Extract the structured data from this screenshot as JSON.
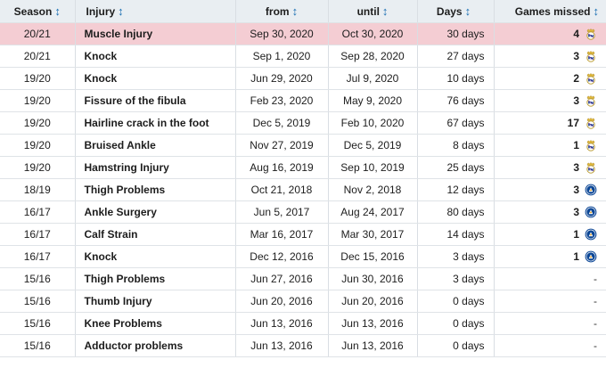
{
  "headers": {
    "season": "Season",
    "injury": "Injury",
    "from": "from",
    "until": "until",
    "days": "Days",
    "games": "Games missed",
    "sort_glyph": "↕"
  },
  "colors": {
    "header_bg": "#e9eef2",
    "header_text": "#1a6fb3",
    "highlight_row": "#f4cdd3"
  },
  "rows": [
    {
      "season": "20/21",
      "injury": "Muscle Injury",
      "from": "Sep 30, 2020",
      "until": "Oct 30, 2020",
      "days": "30 days",
      "games": "4",
      "club_icon": "real-madrid-crest",
      "highlight": true
    },
    {
      "season": "20/21",
      "injury": "Knock",
      "from": "Sep 1, 2020",
      "until": "Sep 28, 2020",
      "days": "27 days",
      "games": "3",
      "club_icon": "real-madrid-crest"
    },
    {
      "season": "19/20",
      "injury": "Knock",
      "from": "Jun 29, 2020",
      "until": "Jul 9, 2020",
      "days": "10 days",
      "games": "2",
      "club_icon": "real-madrid-crest"
    },
    {
      "season": "19/20",
      "injury": "Fissure of the fibula",
      "from": "Feb 23, 2020",
      "until": "May 9, 2020",
      "days": "76 days",
      "games": "3",
      "club_icon": "real-madrid-crest"
    },
    {
      "season": "19/20",
      "injury": "Hairline crack in the foot",
      "from": "Dec 5, 2019",
      "until": "Feb 10, 2020",
      "days": "67 days",
      "games": "17",
      "club_icon": "real-madrid-crest"
    },
    {
      "season": "19/20",
      "injury": "Bruised Ankle",
      "from": "Nov 27, 2019",
      "until": "Dec 5, 2019",
      "days": "8 days",
      "games": "1",
      "club_icon": "real-madrid-crest"
    },
    {
      "season": "19/20",
      "injury": "Hamstring Injury",
      "from": "Aug 16, 2019",
      "until": "Sep 10, 2019",
      "days": "25 days",
      "games": "3",
      "club_icon": "real-madrid-crest"
    },
    {
      "season": "18/19",
      "injury": "Thigh Problems",
      "from": "Oct 21, 2018",
      "until": "Nov 2, 2018",
      "days": "12 days",
      "games": "3",
      "club_icon": "chelsea-crest"
    },
    {
      "season": "16/17",
      "injury": "Ankle Surgery",
      "from": "Jun 5, 2017",
      "until": "Aug 24, 2017",
      "days": "80 days",
      "games": "3",
      "club_icon": "chelsea-crest"
    },
    {
      "season": "16/17",
      "injury": "Calf Strain",
      "from": "Mar 16, 2017",
      "until": "Mar 30, 2017",
      "days": "14 days",
      "games": "1",
      "club_icon": "chelsea-crest"
    },
    {
      "season": "16/17",
      "injury": "Knock",
      "from": "Dec 12, 2016",
      "until": "Dec 15, 2016",
      "days": "3 days",
      "games": "1",
      "club_icon": "chelsea-crest"
    },
    {
      "season": "15/16",
      "injury": "Thigh Problems",
      "from": "Jun 27, 2016",
      "until": "Jun 30, 2016",
      "days": "3 days",
      "games": "-",
      "club_icon": ""
    },
    {
      "season": "15/16",
      "injury": "Thumb Injury",
      "from": "Jun 20, 2016",
      "until": "Jun 20, 2016",
      "days": "0 days",
      "games": "-",
      "club_icon": ""
    },
    {
      "season": "15/16",
      "injury": "Knee Problems",
      "from": "Jun 13, 2016",
      "until": "Jun 13, 2016",
      "days": "0 days",
      "games": "-",
      "club_icon": ""
    },
    {
      "season": "15/16",
      "injury": "Adductor problems",
      "from": "Jun 13, 2016",
      "until": "Jun 13, 2016",
      "days": "0 days",
      "games": "-",
      "club_icon": ""
    }
  ]
}
